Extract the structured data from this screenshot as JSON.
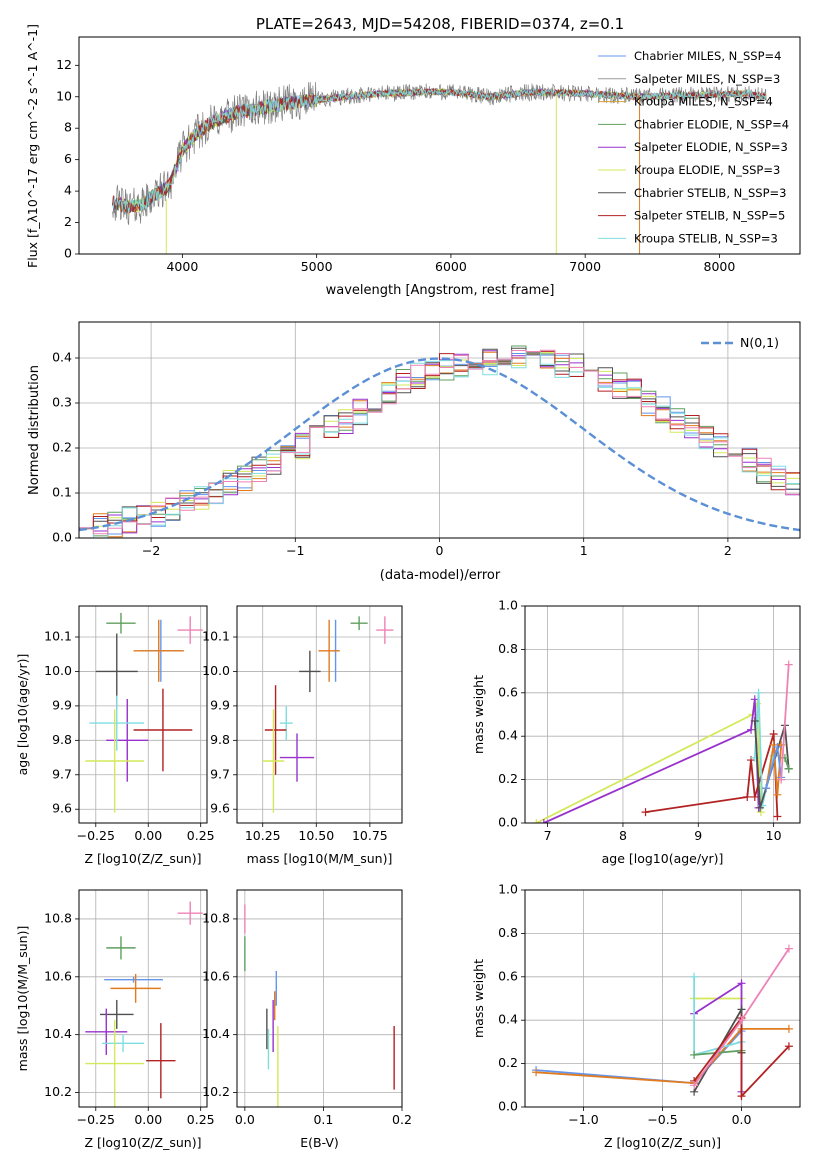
{
  "chart_data": [
    {
      "type": "line",
      "title": "PLATE=2643, MJD=54208, FIBERID=0374, z=0.1",
      "xlabel": "wavelength [Angstrom, rest frame]",
      "ylabel": "Flux [f_λ10^-17 erg cm^-2 s^-1 A^-1]",
      "xlim": [
        3230,
        8600
      ],
      "ylim": [
        0,
        13.8
      ],
      "xticks": [
        4000,
        5000,
        6000,
        7000,
        8000
      ],
      "yticks": [
        0,
        2,
        4,
        6,
        8,
        10,
        12
      ],
      "legend_position": "upper-right",
      "data_color": "#808080",
      "continuum": {
        "x": [
          3480,
          3600,
          3700,
          3800,
          3900,
          4000,
          4100,
          4200,
          4400,
          4600,
          4800,
          5000,
          5200,
          5500,
          5800,
          6000,
          6300,
          6600,
          7000,
          7400,
          7800,
          8200,
          8350
        ],
        "y": [
          3.3,
          3.0,
          3.1,
          3.8,
          4.3,
          6.6,
          7.6,
          8.3,
          9.0,
          9.3,
          9.6,
          9.8,
          10.0,
          10.2,
          10.3,
          10.3,
          10.0,
          10.3,
          10.2,
          10.0,
          10.1,
          10.2,
          10.0
        ]
      },
      "series": [
        {
          "name": "Chabrier MILES, N_SSP=4",
          "color": "#6495ed"
        },
        {
          "name": "Salpeter MILES, N_SSP=3",
          "color": "#9a9a9a"
        },
        {
          "name": "Kroupa MILES, N_SSP=4",
          "color": "#d2a030"
        },
        {
          "name": "Chabrier ELODIE, N_SSP=4",
          "color": "#5f9f5f"
        },
        {
          "name": "Salpeter ELODIE, N_SSP=3",
          "color": "#9932cc"
        },
        {
          "name": "Kroupa ELODIE, N_SSP=3",
          "color": "#d4e85a"
        },
        {
          "name": "Chabrier STELIB, N_SSP=3",
          "color": "#505050"
        },
        {
          "name": "Salpeter STELIB, N_SSP=5",
          "color": "#b22222"
        },
        {
          "name": "Kroupa STELIB, N_SSP=3",
          "color": "#7fdde0"
        }
      ]
    },
    {
      "type": "histogram",
      "xlabel": "(data-model)/error",
      "ylabel": "Normed distribution",
      "xlim": [
        -2.5,
        2.5
      ],
      "ylim": [
        0,
        0.48
      ],
      "xticks": [
        -2,
        -1,
        0,
        1,
        2
      ],
      "yticks": [
        0.0,
        0.1,
        0.2,
        0.3,
        0.4
      ],
      "legend": "N(0,1)",
      "legend_position": "upper-right",
      "gaussian_color": "#5b8fd6",
      "bin_width": 0.1,
      "bin_start": -2.5,
      "base_values": [
        0.02,
        0.027,
        0.032,
        0.04,
        0.047,
        0.055,
        0.065,
        0.078,
        0.09,
        0.105,
        0.12,
        0.135,
        0.155,
        0.17,
        0.185,
        0.205,
        0.225,
        0.245,
        0.26,
        0.28,
        0.3,
        0.325,
        0.345,
        0.36,
        0.37,
        0.38,
        0.385,
        0.385,
        0.39,
        0.4,
        0.4,
        0.4,
        0.395,
        0.385,
        0.38,
        0.37,
        0.355,
        0.34,
        0.325,
        0.3,
        0.285,
        0.26,
        0.245,
        0.225,
        0.205,
        0.185,
        0.17,
        0.15,
        0.135,
        0.115,
        0.1,
        0.09,
        0.078,
        0.065,
        0.055,
        0.047,
        0.04,
        0.032,
        0.025,
        0.02
      ]
    },
    {
      "type": "scatter",
      "xlabel": "Z [log10(Z/Z_sun)]",
      "ylabel": "age [log10(age/yr)]",
      "xlim": [
        -0.33,
        0.28
      ],
      "ylim": [
        9.56,
        10.19
      ],
      "xticks": [
        -0.25,
        0.0,
        0.25
      ],
      "yticks": [
        9.6,
        9.7,
        9.8,
        9.9,
        10.0,
        10.1
      ],
      "points": [
        {
          "x": 0.06,
          "y": 10.06,
          "xerr": 0.1,
          "yerr": 0.09,
          "color": "#6495ed"
        },
        {
          "x": 0.05,
          "y": 10.06,
          "xerr": 0.12,
          "yerr": 0.09,
          "color": "#e07b20"
        },
        {
          "x": -0.13,
          "y": 10.14,
          "xerr": 0.07,
          "yerr": 0.03,
          "color": "#5f9f5f"
        },
        {
          "x": 0.2,
          "y": 10.12,
          "xerr": 0.06,
          "yerr": 0.04,
          "color": "#ee82b5"
        },
        {
          "x": -0.15,
          "y": 10.0,
          "xerr": 0.1,
          "yerr": 0.11,
          "color": "#505050"
        },
        {
          "x": -0.1,
          "y": 9.8,
          "xerr": 0.1,
          "yerr": 0.12,
          "color": "#9932cc"
        },
        {
          "x": -0.15,
          "y": 9.85,
          "xerr": 0.13,
          "yerr": 0.08,
          "color": "#7fdde0"
        },
        {
          "x": 0.07,
          "y": 9.83,
          "xerr": 0.14,
          "yerr": 0.12,
          "color": "#b22222"
        },
        {
          "x": -0.16,
          "y": 9.74,
          "xerr": 0.14,
          "yerr": 0.15,
          "color": "#d4e85a"
        }
      ]
    },
    {
      "type": "scatter",
      "xlabel": "mass [log10(M/M_sun)]",
      "ylabel": "",
      "xlim": [
        10.13,
        10.9
      ],
      "ylim": [
        9.56,
        10.19
      ],
      "xticks": [
        10.25,
        10.5,
        10.75
      ],
      "yticks": [
        9.6,
        9.7,
        9.8,
        9.9,
        10.0,
        10.1
      ],
      "points": [
        {
          "x": 10.59,
          "y": 10.06,
          "xerr": 0.01,
          "yerr": 0.09,
          "color": "#6495ed"
        },
        {
          "x": 10.56,
          "y": 10.06,
          "xerr": 0.05,
          "yerr": 0.09,
          "color": "#e07b20"
        },
        {
          "x": 10.7,
          "y": 10.14,
          "xerr": 0.04,
          "yerr": 0.02,
          "color": "#5f9f5f"
        },
        {
          "x": 10.82,
          "y": 10.12,
          "xerr": 0.04,
          "yerr": 0.04,
          "color": "#ee82b5"
        },
        {
          "x": 10.47,
          "y": 10.0,
          "xerr": 0.05,
          "yerr": 0.06,
          "color": "#505050"
        },
        {
          "x": 10.41,
          "y": 9.75,
          "xerr": 0.08,
          "yerr": 0.07,
          "color": "#9932cc"
        },
        {
          "x": 10.36,
          "y": 9.85,
          "xerr": 0.03,
          "yerr": 0.05,
          "color": "#7fdde0"
        },
        {
          "x": 10.31,
          "y": 9.83,
          "xerr": 0.05,
          "yerr": 0.13,
          "color": "#b22222"
        },
        {
          "x": 10.3,
          "y": 9.74,
          "xerr": 0.05,
          "yerr": 0.15,
          "color": "#d4e85a"
        }
      ]
    },
    {
      "type": "line",
      "xlabel": "age [log10(age/yr)]",
      "ylabel": "mass weight",
      "xlim": [
        6.7,
        10.35
      ],
      "ylim": [
        0.0,
        1.0
      ],
      "xticks": [
        7,
        8,
        9,
        10
      ],
      "yticks": [
        0.0,
        0.2,
        0.4,
        0.6,
        0.8,
        1.0
      ],
      "series": [
        {
          "color": "#d4e85a",
          "x": [
            6.85,
            9.72,
            9.78,
            9.83
          ],
          "y": [
            0.0,
            0.5,
            0.55,
            0.05
          ]
        },
        {
          "color": "#9932cc",
          "x": [
            6.95,
            9.7,
            9.75,
            9.8
          ],
          "y": [
            0.0,
            0.43,
            0.57,
            0.07
          ]
        },
        {
          "color": "#b22222",
          "x": [
            8.3,
            9.65,
            9.7,
            9.75,
            10.0,
            10.05
          ],
          "y": [
            0.05,
            0.12,
            0.29,
            0.12,
            0.41,
            0.03
          ]
        },
        {
          "color": "#7fdde0",
          "x": [
            9.75,
            9.8,
            9.85,
            10.0
          ],
          "y": [
            0.3,
            0.6,
            0.08,
            0.31
          ]
        },
        {
          "color": "#505050",
          "x": [
            9.75,
            9.82,
            10.15,
            10.2
          ],
          "y": [
            0.47,
            0.07,
            0.45,
            0.25
          ]
        },
        {
          "color": "#e07b20",
          "x": [
            9.9,
            10.0,
            10.05,
            10.1
          ],
          "y": [
            0.16,
            0.36,
            0.13,
            0.36
          ]
        },
        {
          "color": "#6495ed",
          "x": [
            9.9,
            10.05,
            10.1
          ],
          "y": [
            0.16,
            0.35,
            0.21
          ]
        },
        {
          "color": "#5f9f5f",
          "x": [
            10.15,
            10.2
          ],
          "y": [
            0.3,
            0.25
          ]
        },
        {
          "color": "#ee82b5",
          "x": [
            10.1,
            10.2
          ],
          "y": [
            0.2,
            0.73
          ]
        }
      ]
    },
    {
      "type": "scatter",
      "xlabel": "Z [log10(Z/Z_sun)]",
      "ylabel": "mass [log10(M/M_sun)]",
      "xlim": [
        -0.33,
        0.28
      ],
      "ylim": [
        10.15,
        10.9
      ],
      "xticks": [
        -0.25,
        0.0,
        0.25
      ],
      "yticks": [
        10.2,
        10.4,
        10.6,
        10.8
      ],
      "points": [
        {
          "x": -0.07,
          "y": 10.59,
          "xerr": 0.14,
          "yerr": 0.01,
          "color": "#6495ed"
        },
        {
          "x": -0.06,
          "y": 10.56,
          "xerr": 0.12,
          "yerr": 0.05,
          "color": "#e07b20"
        },
        {
          "x": -0.13,
          "y": 10.7,
          "xerr": 0.07,
          "yerr": 0.04,
          "color": "#5f9f5f"
        },
        {
          "x": 0.2,
          "y": 10.82,
          "xerr": 0.06,
          "yerr": 0.04,
          "color": "#ee82b5"
        },
        {
          "x": -0.15,
          "y": 10.47,
          "xerr": 0.08,
          "yerr": 0.05,
          "color": "#505050"
        },
        {
          "x": -0.2,
          "y": 10.41,
          "xerr": 0.1,
          "yerr": 0.08,
          "color": "#9932cc"
        },
        {
          "x": -0.12,
          "y": 10.37,
          "xerr": 0.1,
          "yerr": 0.03,
          "color": "#7fdde0"
        },
        {
          "x": 0.06,
          "y": 10.31,
          "xerr": 0.07,
          "yerr": 0.13,
          "color": "#b22222"
        },
        {
          "x": -0.16,
          "y": 10.3,
          "xerr": 0.14,
          "yerr": 0.15,
          "color": "#d4e85a"
        }
      ]
    },
    {
      "type": "scatter",
      "xlabel": "E(B-V)",
      "ylabel": "",
      "xlim": [
        -0.01,
        0.2
      ],
      "ylim": [
        10.15,
        10.9
      ],
      "xticks": [
        0.0,
        0.1,
        0.2
      ],
      "yticks": [
        10.2,
        10.4,
        10.6,
        10.8
      ],
      "points": [
        {
          "x": 0.04,
          "y": 10.56,
          "xerr": 0.0,
          "yerr": 0.06,
          "color": "#6495ed"
        },
        {
          "x": 0.038,
          "y": 10.5,
          "xerr": 0.0,
          "yerr": 0.05,
          "color": "#e07b20"
        },
        {
          "x": 0.0,
          "y": 10.68,
          "xerr": 0.0,
          "yerr": 0.06,
          "color": "#5f9f5f"
        },
        {
          "x": 0.0,
          "y": 10.8,
          "xerr": 0.0,
          "yerr": 0.05,
          "color": "#ee82b5"
        },
        {
          "x": 0.028,
          "y": 10.42,
          "xerr": 0.0,
          "yerr": 0.07,
          "color": "#505050"
        },
        {
          "x": 0.036,
          "y": 10.43,
          "xerr": 0.0,
          "yerr": 0.09,
          "color": "#9932cc"
        },
        {
          "x": 0.03,
          "y": 10.35,
          "xerr": 0.0,
          "yerr": 0.07,
          "color": "#7fdde0"
        },
        {
          "x": 0.19,
          "y": 10.32,
          "xerr": 0.0,
          "yerr": 0.11,
          "color": "#b22222"
        },
        {
          "x": 0.042,
          "y": 10.29,
          "xerr": 0.0,
          "yerr": 0.14,
          "color": "#d4e85a"
        }
      ]
    },
    {
      "type": "line",
      "xlabel": "Z [log10(Z/Z_sun)]",
      "ylabel": "mass weight",
      "xlim": [
        -1.37,
        0.37
      ],
      "ylim": [
        0.0,
        1.0
      ],
      "xticks": [
        -1.0,
        -0.5,
        0.0
      ],
      "yticks": [
        0.0,
        0.2,
        0.4,
        0.6,
        0.8,
        1.0
      ],
      "series": [
        {
          "color": "#6495ed",
          "x": [
            -1.3,
            -0.3,
            0.0
          ],
          "y": [
            0.17,
            0.11,
            0.35
          ]
        },
        {
          "color": "#e07b20",
          "x": [
            -1.3,
            -0.3,
            0.0,
            0.3
          ],
          "y": [
            0.16,
            0.11,
            0.36,
            0.36
          ]
        },
        {
          "color": "#d4e85a",
          "x": [
            -0.3,
            -0.3,
            0.0
          ],
          "y": [
            0.5,
            0.5,
            0.5
          ]
        },
        {
          "color": "#9932cc",
          "x": [
            -0.3,
            0.0,
            0.0
          ],
          "y": [
            0.43,
            0.57,
            0.07
          ]
        },
        {
          "color": "#7fdde0",
          "x": [
            -0.3,
            -0.3,
            0.0
          ],
          "y": [
            0.6,
            0.24,
            0.3
          ]
        },
        {
          "color": "#5f9f5f",
          "x": [
            -0.3,
            0.0,
            0.0
          ],
          "y": [
            0.24,
            0.26,
            0.25
          ]
        },
        {
          "color": "#505050",
          "x": [
            -0.3,
            0.0,
            0.0
          ],
          "y": [
            0.07,
            0.45,
            0.25
          ]
        },
        {
          "color": "#b22222",
          "x": [
            -0.3,
            0.0,
            0.0,
            0.3
          ],
          "y": [
            0.12,
            0.41,
            0.05,
            0.28
          ]
        },
        {
          "color": "#ee82b5",
          "x": [
            -0.3,
            0.0,
            0.3
          ],
          "y": [
            0.1,
            0.4,
            0.73
          ]
        }
      ]
    }
  ]
}
